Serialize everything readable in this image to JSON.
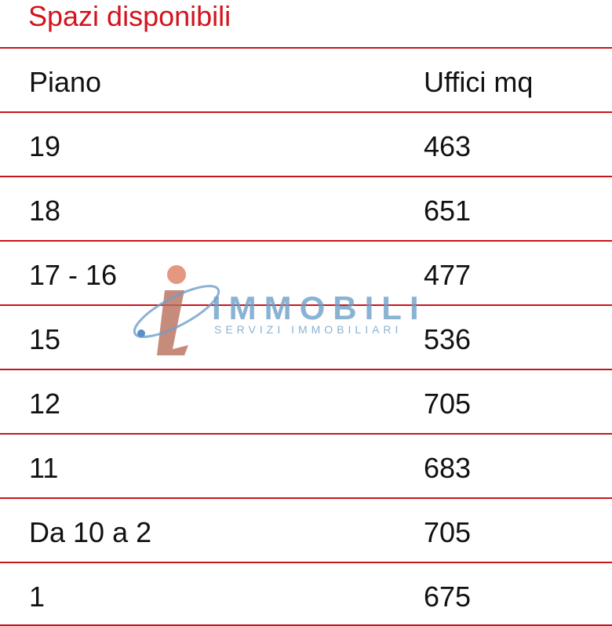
{
  "title": "Spazi disponibili",
  "table": {
    "headers": [
      "Piano",
      "Uffici mq"
    ],
    "rows": [
      [
        "19",
        "463"
      ],
      [
        "18",
        "651"
      ],
      [
        "17 - 16",
        "477"
      ],
      [
        "15",
        "536"
      ],
      [
        "12",
        "705"
      ],
      [
        "11",
        "683"
      ],
      [
        "Da 10 a 2",
        "705"
      ],
      [
        "1",
        "675"
      ]
    ]
  },
  "watermark": {
    "brand": "IMMOBILI",
    "tagline": "SERVIZI IMMOBILIARI"
  },
  "colors": {
    "accent": "#d3141c"
  }
}
